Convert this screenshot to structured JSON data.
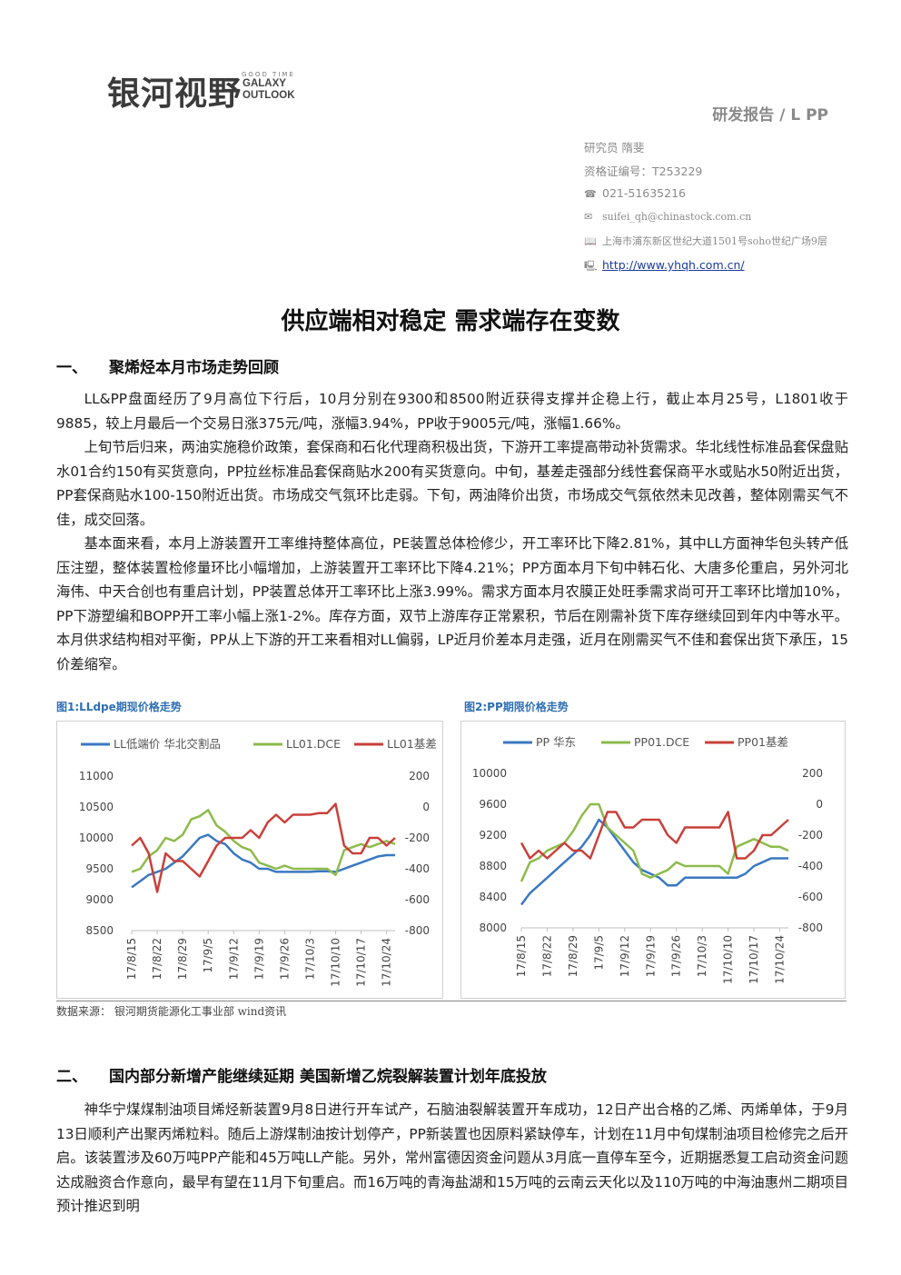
{
  "header": {
    "logo_cn": "银河视野",
    "logo_small": "GOOD TIME",
    "logo_en_1": "GALAXY",
    "logo_en_2": "OUTLOOK",
    "report_type": "研发报告 / L PP",
    "researcher": "研究员  隋斐",
    "license": "资格证编号：T253229",
    "phone": "021-51635216",
    "email": "suifei_qh@chinastock.com.cn",
    "address": "上海市浦东新区世纪大道1501号soho世纪广场9层",
    "website": "http://www.yhqh.com.cn/",
    "icons": [
      "phone-icon",
      "mail-icon",
      "book-icon",
      "computer-icon"
    ]
  },
  "title": "供应端相对稳定  需求端存在变数",
  "section1": {
    "num": "一、",
    "heading": "聚烯烃本月市场走势回顾",
    "paragraphs": [
      "LL&PP盘面经历了9月高位下行后，10月分别在9300和8500附近获得支撑并企稳上行，截止本月25号，L1801收于9885，较上月最后一个交易日涨375元/吨，涨幅3.94%，PP收于9005元/吨，涨幅1.66%。",
      "上旬节后归来，两油实施稳价政策，套保商和石化代理商积极出货，下游开工率提高带动补货需求。华北线性标准品套保盘贴水01合约150有买货意向，PP拉丝标准品套保商贴水200有买货意向。中旬，基差走强部分线性套保商平水或贴水50附近出货，PP套保商贴水100-150附近出货。市场成交气氛环比走弱。下旬，两油降价出货，市场成交气氛依然未见改善，整体刚需买气不佳，成交回落。",
      "基本面来看，本月上游装置开工率维持整体高位，PE装置总体检修少，开工率环比下降2.81%，其中LL方面神华包头转产低压注塑，整体装置检修量环比小幅增加，上游装置开工率环比下降4.21%；PP方面本月下旬中韩石化、大唐多伦重启，另外河北海伟、中天合创也有重启计划，PP装置总体开工率环比上涨3.99%。需求方面本月农膜正处旺季需求尚可开工率环比增加10%，PP下游塑编和BOPP开工率小幅上涨1-2%。库存方面，双节上游库存正常累积，节后在刚需补货下库存继续回到年内中等水平。本月供求结构相对平衡，PP从上下游的开工来看相对LL偏弱，LP近月价差本月走强，近月在刚需买气不佳和套保出货下承压，15价差缩窄。"
    ]
  },
  "figures": {
    "fig1_caption": "图1:LLdpe期现价格走势",
    "fig2_caption": "图2:PP期限价格走势",
    "source": "数据来源：  银河期货能源化工事业部  wind资讯"
  },
  "chart_data": [
    {
      "type": "line",
      "x": [
        "17/8/15",
        "17/8/17",
        "17/8/19",
        "17/8/22",
        "17/8/24",
        "17/8/26",
        "17/8/29",
        "17/8/31",
        "17/9/2",
        "17/9/5",
        "17/9/7",
        "17/9/9",
        "17/9/12",
        "17/9/14",
        "17/9/16",
        "17/9/19",
        "17/9/21",
        "17/9/23",
        "17/9/26",
        "17/9/28",
        "17/9/30",
        "17/10/3",
        "17/10/5",
        "17/10/7",
        "17/10/10",
        "17/10/12",
        "17/10/14",
        "17/10/17",
        "17/10/19",
        "17/10/21",
        "17/10/24",
        "17/10/26"
      ],
      "x_ticks": [
        "17/8/15",
        "17/8/22",
        "17/8/29",
        "17/9/5",
        "17/9/12",
        "17/9/19",
        "17/9/26",
        "17/10/3",
        "17/10/10",
        "17/10/17",
        "17/10/24"
      ],
      "series": [
        {
          "name": "LL低端价 华北交割品",
          "axis": "left",
          "color": "#3a78c2",
          "values": [
            9200,
            9300,
            9400,
            9450,
            9500,
            9600,
            9700,
            9850,
            10000,
            10050,
            9950,
            9900,
            9750,
            9650,
            9600,
            9500,
            9500,
            9450,
            9450,
            9450,
            9450,
            9450,
            9460,
            9460,
            9450,
            9500,
            9550,
            9600,
            9650,
            9700,
            9720,
            9720
          ]
        },
        {
          "name": "LL01.DCE",
          "axis": "left",
          "color": "#8dbb4b",
          "values": [
            9450,
            9500,
            9700,
            9800,
            10000,
            9950,
            10050,
            10300,
            10350,
            10450,
            10200,
            10100,
            9950,
            9850,
            9800,
            9600,
            9550,
            9500,
            9550,
            9500,
            9500,
            9500,
            9500,
            9500,
            9400,
            9800,
            9850,
            9900,
            9850,
            9900,
            9950,
            9900
          ]
        },
        {
          "name": "LL01基差",
          "axis": "right",
          "color": "#c9403a",
          "values": [
            -250,
            -200,
            -300,
            -550,
            -300,
            -350,
            -350,
            -400,
            -450,
            -350,
            -250,
            -200,
            -200,
            -200,
            -150,
            -200,
            -100,
            -50,
            -100,
            -50,
            -50,
            -50,
            -40,
            -40,
            20,
            -250,
            -300,
            -300,
            -200,
            -200,
            -250,
            -200
          ]
        }
      ],
      "ylim_left": [
        8500,
        11000
      ],
      "ylim_right": [
        -800,
        200
      ],
      "yticks_left": [
        8500,
        9000,
        9500,
        10000,
        10500,
        11000
      ],
      "yticks_right": [
        -800,
        -600,
        -400,
        -200,
        0,
        200
      ],
      "legend": "top",
      "grid": false
    },
    {
      "type": "line",
      "x": [
        "17/8/15",
        "17/8/17",
        "17/8/19",
        "17/8/22",
        "17/8/24",
        "17/8/26",
        "17/8/29",
        "17/8/31",
        "17/9/2",
        "17/9/5",
        "17/9/7",
        "17/9/9",
        "17/9/12",
        "17/9/14",
        "17/9/16",
        "17/9/19",
        "17/9/21",
        "17/9/23",
        "17/9/26",
        "17/9/28",
        "17/9/30",
        "17/10/3",
        "17/10/5",
        "17/10/7",
        "17/10/10",
        "17/10/12",
        "17/10/14",
        "17/10/17",
        "17/10/19",
        "17/10/21",
        "17/10/24",
        "17/10/26"
      ],
      "x_ticks": [
        "17/8/15",
        "17/8/22",
        "17/8/29",
        "17/9/5",
        "17/9/12",
        "17/9/19",
        "17/9/26",
        "17/10/3",
        "17/10/10",
        "17/10/17",
        "17/10/24"
      ],
      "series": [
        {
          "name": "PP 华东",
          "axis": "left",
          "color": "#3a78c2",
          "values": [
            8300,
            8450,
            8550,
            8650,
            8750,
            8850,
            8950,
            9050,
            9200,
            9400,
            9300,
            9150,
            9000,
            8850,
            8750,
            8700,
            8650,
            8550,
            8550,
            8650,
            8650,
            8650,
            8650,
            8650,
            8650,
            8650,
            8700,
            8800,
            8850,
            8900,
            8900,
            8900
          ]
        },
        {
          "name": "PP01.DCE",
          "axis": "left",
          "color": "#8dbb4b",
          "values": [
            8600,
            8850,
            8900,
            9000,
            9050,
            9100,
            9250,
            9450,
            9600,
            9600,
            9300,
            9200,
            9100,
            9000,
            8700,
            8650,
            8700,
            8750,
            8850,
            8800,
            8800,
            8800,
            8800,
            8800,
            8700,
            9050,
            9100,
            9150,
            9100,
            9050,
            9050,
            9000
          ]
        },
        {
          "name": "PP01基差",
          "axis": "right",
          "color": "#c9403a",
          "values": [
            -250,
            -350,
            -300,
            -350,
            -300,
            -250,
            -300,
            -300,
            -350,
            -200,
            -50,
            -50,
            -150,
            -150,
            -100,
            -100,
            -100,
            -200,
            -250,
            -150,
            -150,
            -150,
            -150,
            -150,
            -50,
            -350,
            -350,
            -300,
            -200,
            -200,
            -150,
            -100
          ]
        }
      ],
      "ylim_left": [
        8000,
        10000
      ],
      "ylim_right": [
        -800,
        200
      ],
      "yticks_left": [
        8000,
        8400,
        8800,
        9200,
        9600,
        10000
      ],
      "yticks_right": [
        -800,
        -600,
        -400,
        -200,
        0,
        200
      ],
      "legend": "top",
      "grid": false
    }
  ],
  "section2": {
    "num": "二、",
    "heading": "国内部分新增产能继续延期  美国新增乙烷裂解装置计划年底投放",
    "paragraphs": [
      "神华宁煤煤制油项目烯烃新装置9月8日进行开车试产，石脑油裂解装置开车成功，12日产出合格的乙烯、丙烯单体，于9月13日顺利产出聚丙烯粒料。随后上游煤制油按计划停产，PP新装置也因原料紧缺停车，计划在11月中旬煤制油项目检修完之后开启。该装置涉及60万吨PP产能和45万吨LL产能。另外，常州富德因资金问题从3月底一直停车至今，近期据悉复工启动资金问题达成融资合作意向，最早有望在11月下旬重启。而16万吨的青海盐湖和15万吨的云南云天化以及110万吨的中海油惠州二期项目预计推迟到明"
    ]
  }
}
